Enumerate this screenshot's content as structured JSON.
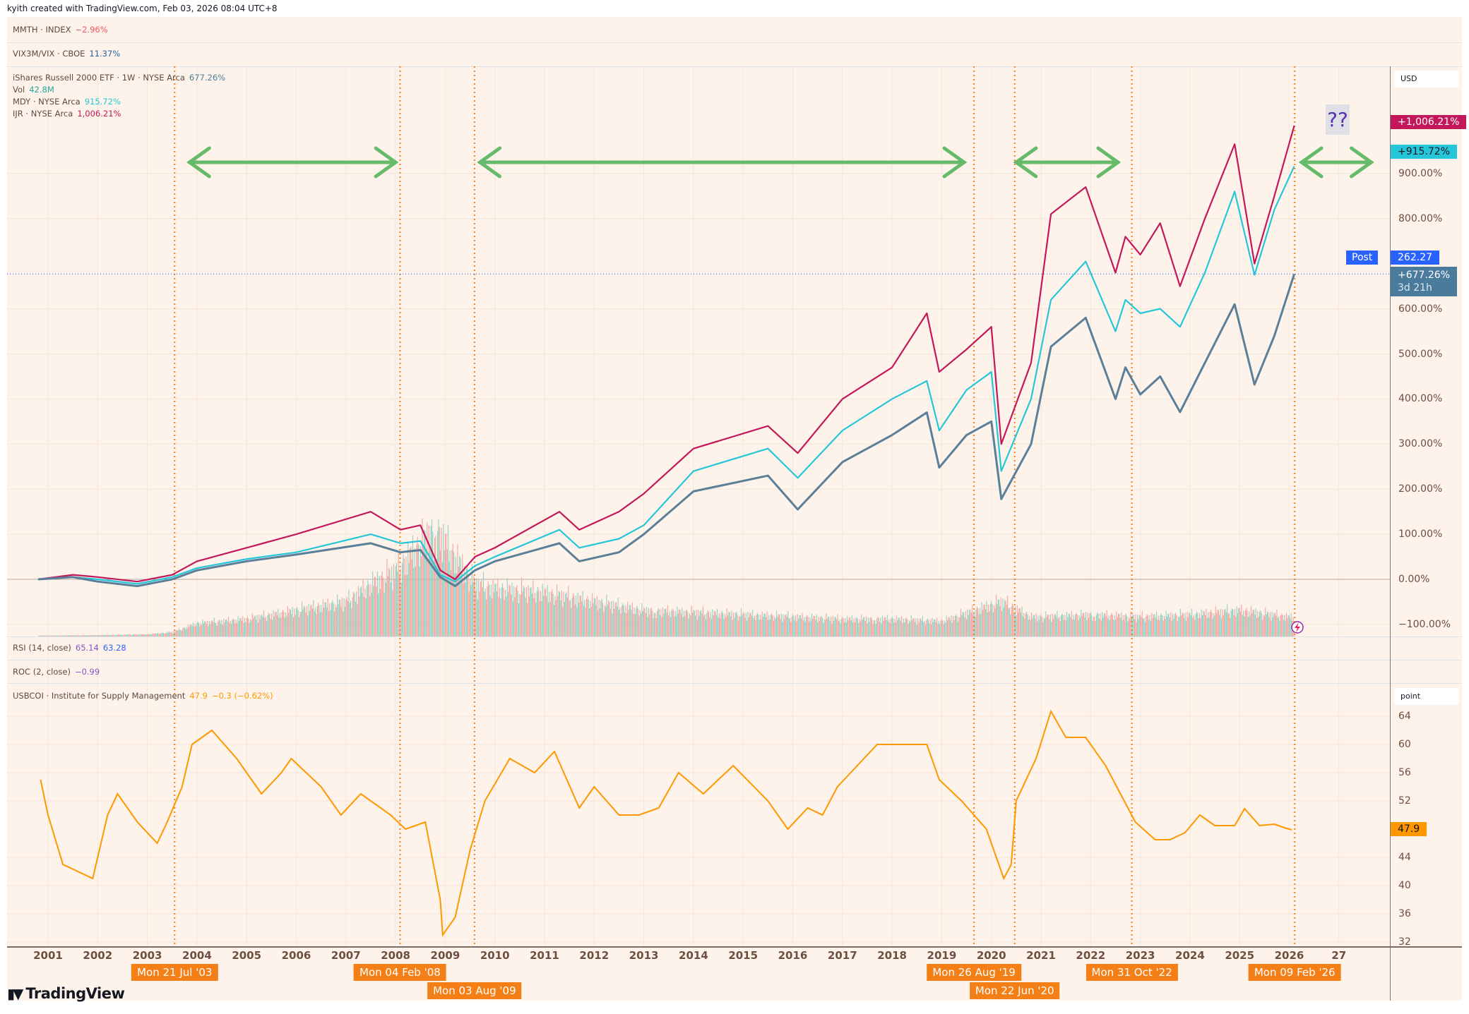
{
  "credit": "kyith created with TradingView.com, Feb 03, 2026 08:04 UTC+8",
  "panes": {
    "mmth": {
      "label": "MMTH · INDEX",
      "value": "−2.96%",
      "value_color": "#f7525f"
    },
    "vix": {
      "label": "VIX3M/VIX · CBOE",
      "value": "11.37%",
      "value_color": "#2962a0"
    },
    "main": {
      "iwm_label": "iShares Russell 2000 ETF · 1W · NYSE Arca",
      "iwm_value": "677.26%",
      "vol_label": "Vol",
      "vol_value": "42.8M",
      "mdy_label": "MDY · NYSE Arca",
      "mdy_value": "915.72%",
      "ijr_label": "IJR · NYSE Arca",
      "ijr_value": "1,006.21%"
    },
    "rsi": {
      "label": "RSI (14, close)",
      "value1": "65.14",
      "value2": "63.28"
    },
    "roc": {
      "label": "ROC (2, close)",
      "value": "−0.99"
    },
    "ism": {
      "label": "USBCOI · Institute for Supply Management",
      "value": "47.9",
      "change": "−0.3 (−0.62%)"
    }
  },
  "price_axis": {
    "unit": "USD",
    "ticks": [
      "900.00%",
      "800.00%",
      "600.00%",
      "500.00%",
      "400.00%",
      "300.00%",
      "200.00%",
      "100.00%",
      "0.00%",
      "−100.00%"
    ],
    "tick_values": [
      900,
      800,
      600,
      500,
      400,
      300,
      200,
      100,
      0,
      -100
    ],
    "ijr_tag": "+1,006.21%",
    "mdy_tag": "+915.72%",
    "post_label": "Post",
    "post_price": "262.27",
    "iwm_tag": "+677.26%",
    "countdown": "3d 21h"
  },
  "ism_axis": {
    "unit": "point",
    "ticks": [
      "64",
      "60",
      "56",
      "52",
      "44",
      "40",
      "36",
      "32"
    ],
    "tick_values": [
      64,
      60,
      56,
      52,
      44,
      40,
      36,
      32
    ],
    "last_tag": "47.9"
  },
  "time_axis": {
    "years": [
      "2001",
      "2002",
      "2003",
      "2004",
      "2005",
      "2006",
      "2007",
      "2008",
      "2009",
      "2010",
      "2011",
      "2012",
      "2013",
      "2014",
      "2015",
      "2016",
      "2017",
      "2018",
      "2019",
      "2020",
      "2021",
      "2022",
      "2023",
      "2024",
      "2025",
      "2026",
      "27"
    ],
    "markers": [
      {
        "label": "Mon 21 Jul '03",
        "t": 2003.55
      },
      {
        "label": "Mon 04 Feb '08",
        "t": 2008.09
      },
      {
        "label": "Mon 03 Aug '09",
        "t": 2009.59
      },
      {
        "label": "Mon 26 Aug '19",
        "t": 2019.65
      },
      {
        "label": "Mon 22 Jun '20",
        "t": 2020.47
      },
      {
        "label": "Mon 31 Oct '22",
        "t": 2022.83
      },
      {
        "label": "Mon 09 Feb '26",
        "t": 2026.11
      }
    ]
  },
  "annotations": {
    "question": "??",
    "arrows": [
      {
        "from": 2003.85,
        "to": 2008.0
      },
      {
        "from": 2009.7,
        "to": 2019.45
      },
      {
        "from": 2020.5,
        "to": 2022.55
      },
      {
        "from": 2026.25,
        "to": 2027.65
      }
    ],
    "arrow_color": "#66bb6a",
    "marker_color": "#f57f17"
  },
  "colors": {
    "iwm": "#5b7f99",
    "mdy": "#26c6da",
    "ijr": "#c2185b",
    "ism": "#ff9800",
    "vol_up": "#8fd1c4",
    "vol_down": "#f5a49e",
    "background": "#fdf3ea",
    "post": "#2962ff",
    "iwm_tag": "#4a7b9d"
  },
  "logo": "TradingView",
  "chart_data": [
    {
      "type": "line",
      "ylabel": "",
      "ylim": [
        -100,
        1050
      ],
      "x": [
        2000.8,
        2001.5,
        2002.0,
        2002.8,
        2003.5,
        2004.0,
        2005.0,
        2006.0,
        2007.5,
        2008.1,
        2008.5,
        2008.9,
        2009.2,
        2009.6,
        2010.0,
        2011.3,
        2011.7,
        2012.5,
        2013.0,
        2014.0,
        2015.5,
        2016.1,
        2017.0,
        2018.0,
        2018.7,
        2018.95,
        2019.5,
        2020.0,
        2020.2,
        2020.8,
        2021.2,
        2021.9,
        2022.5,
        2022.7,
        2023.0,
        2023.4,
        2023.8,
        2024.3,
        2024.9,
        2025.3,
        2025.7,
        2026.1
      ],
      "series": [
        {
          "name": "IJR",
          "values": [
            0,
            10,
            5,
            -5,
            10,
            40,
            70,
            100,
            150,
            110,
            120,
            20,
            0,
            50,
            70,
            150,
            110,
            150,
            190,
            290,
            340,
            280,
            400,
            470,
            590,
            460,
            510,
            560,
            300,
            480,
            810,
            870,
            680,
            760,
            720,
            790,
            650,
            800,
            965,
            700,
            850,
            1006
          ]
        },
        {
          "name": "MDY",
          "values": [
            0,
            5,
            0,
            -10,
            5,
            25,
            45,
            60,
            100,
            80,
            85,
            10,
            -5,
            30,
            50,
            110,
            70,
            90,
            120,
            240,
            290,
            225,
            330,
            400,
            440,
            330,
            420,
            460,
            240,
            400,
            620,
            705,
            550,
            620,
            590,
            600,
            560,
            680,
            860,
            675,
            820,
            916
          ]
        },
        {
          "name": "iShares Russell 2000 ETF",
          "values": [
            0,
            5,
            -5,
            -15,
            0,
            20,
            40,
            55,
            80,
            60,
            65,
            5,
            -15,
            20,
            40,
            80,
            40,
            60,
            100,
            195,
            230,
            155,
            260,
            320,
            370,
            248,
            320,
            350,
            178,
            300,
            516,
            580,
            400,
            470,
            410,
            450,
            371,
            480,
            610,
            432,
            540,
            677
          ]
        }
      ]
    },
    {
      "type": "bar",
      "name": "Vol",
      "x": [
        2000.8,
        2002.0,
        2003.0,
        2003.5,
        2004.0,
        2005.0,
        2006.0,
        2007.0,
        2007.5,
        2008.0,
        2008.8,
        2009.2,
        2009.6,
        2010.0,
        2011.0,
        2012.0,
        2013.0,
        2014.0,
        2015.0,
        2016.0,
        2017.0,
        2018.0,
        2019.0,
        2020.2,
        2020.8,
        2021.0,
        2022.0,
        2023.0,
        2024.0,
        2025.0,
        2026.1
      ],
      "values_millions": [
        2,
        3,
        5,
        10,
        30,
        40,
        60,
        80,
        120,
        150,
        250,
        180,
        120,
        110,
        100,
        80,
        60,
        55,
        50,
        45,
        40,
        40,
        35,
        80,
        45,
        45,
        50,
        45,
        50,
        60,
        43
      ]
    },
    {
      "type": "line",
      "name": "USBCOI",
      "ylim": [
        32,
        66
      ],
      "x": [
        2000.85,
        2001.0,
        2001.3,
        2001.6,
        2001.9,
        2002.2,
        2002.4,
        2002.8,
        2003.2,
        2003.4,
        2003.7,
        2003.9,
        2004.3,
        2004.8,
        2005.3,
        2005.7,
        2005.9,
        2006.5,
        2006.9,
        2007.3,
        2007.7,
        2007.9,
        2008.2,
        2008.6,
        2008.9,
        2008.95,
        2009.2,
        2009.5,
        2009.8,
        2010.3,
        2010.8,
        2011.2,
        2011.7,
        2012.0,
        2012.5,
        2012.9,
        2013.3,
        2013.7,
        2014.2,
        2014.8,
        2015.5,
        2015.9,
        2016.3,
        2016.6,
        2016.9,
        2017.3,
        2017.7,
        2018.2,
        2018.7,
        2018.95,
        2019.4,
        2019.9,
        2020.25,
        2020.4,
        2020.5,
        2020.9,
        2021.2,
        2021.5,
        2021.9,
        2022.3,
        2022.6,
        2022.9,
        2023.3,
        2023.6,
        2023.9,
        2024.2,
        2024.5,
        2024.9,
        2025.1,
        2025.4,
        2025.7,
        2025.9,
        2026.05
      ],
      "values": [
        55,
        50,
        43,
        42,
        41,
        50,
        53,
        49,
        46,
        49,
        54,
        60,
        62,
        58,
        53,
        56,
        58,
        54,
        50,
        53,
        51,
        50,
        48,
        49,
        38,
        33,
        35.5,
        45,
        52,
        58,
        56,
        59,
        51,
        54,
        50,
        50,
        51,
        56,
        53,
        57,
        52,
        48,
        51,
        50,
        54,
        57,
        60,
        60,
        60,
        55,
        52,
        48,
        41,
        43,
        52,
        58,
        64.7,
        61,
        61,
        57,
        53,
        49,
        46.5,
        46.5,
        47.5,
        50,
        48.5,
        48.5,
        50.9,
        48.5,
        48.7,
        48.2,
        47.9
      ]
    }
  ]
}
